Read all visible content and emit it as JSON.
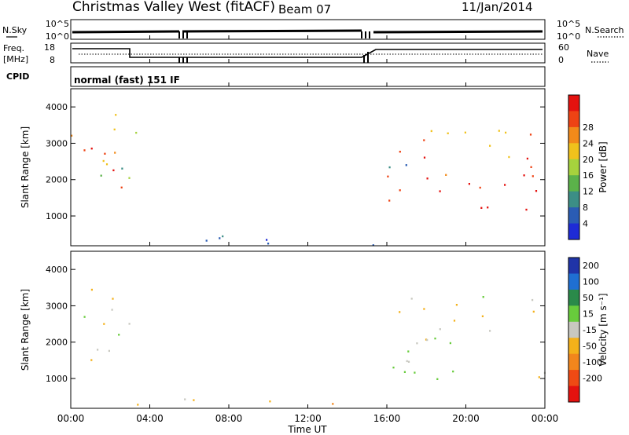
{
  "header": {
    "station": "Christmas Valley West (fitACF)",
    "beam": "Beam 07",
    "date": "11/Jan/2014"
  },
  "nsky_panel": {
    "left_label": "N.Sky",
    "right_label": "N.Search",
    "left_ticks": [
      "10^5",
      "10^0"
    ],
    "right_ticks": [
      "10^5",
      "10^0"
    ]
  },
  "freq_panel": {
    "left_label_1": "Freq.",
    "left_label_2": "[MHz]",
    "right_label": "Nave",
    "left_ticks": [
      "18",
      "8"
    ],
    "right_ticks": [
      "60",
      "0"
    ]
  },
  "cpid_panel": {
    "label": "CPID",
    "mode": "normal (fast) 151 IF"
  },
  "chart_data": [
    {
      "type": "heatmap",
      "name": "power",
      "ylabel": "Slant Range [km]",
      "ylim": [
        180,
        4500
      ],
      "yticks": [
        "1000",
        "2000",
        "3000",
        "4000"
      ],
      "colorbar_label": "Power [dB]",
      "colorbar_ticks": [
        "4",
        "8",
        "12",
        "16",
        "20",
        "24",
        "28"
      ],
      "colors": [
        "#1e2bd6",
        "#2a5cb4",
        "#3c8e86",
        "#5bb24a",
        "#a6d23d",
        "#f0c21c",
        "#f28a1a",
        "#ee4314",
        "#e4120f"
      ],
      "blobs": [
        {
          "t0": 0.0,
          "t1": 3.1,
          "r0": 1300,
          "r1": 3400,
          "level": 7
        },
        {
          "t0": 0.5,
          "t1": 3.5,
          "r0": 1800,
          "r1": 4000,
          "level": 4
        },
        {
          "t0": 2.5,
          "t1": 3.5,
          "r0": 2000,
          "r1": 3200,
          "level": 2
        },
        {
          "t0": 3.0,
          "t1": 16.5,
          "r0": 200,
          "r1": 600,
          "level": 1
        },
        {
          "t0": 16.0,
          "t1": 24.0,
          "r0": 1000,
          "r1": 2800,
          "level": 8
        },
        {
          "t0": 17.5,
          "t1": 24.0,
          "r0": 1800,
          "r1": 3500,
          "level": 6
        },
        {
          "t0": 15.8,
          "t1": 17.0,
          "r0": 1200,
          "r1": 2800,
          "level": 1
        }
      ]
    },
    {
      "type": "heatmap",
      "name": "velocity",
      "ylabel": "Slant Range [km]",
      "ylim": [
        180,
        4500
      ],
      "yticks": [
        "1000",
        "2000",
        "3000",
        "4000"
      ],
      "colorbar_label": "Velocity [m s⁻¹]",
      "colorbar_ticks": [
        "200",
        "100",
        "50",
        "15",
        "-15",
        "-50",
        "-100",
        "-200"
      ],
      "colors": [
        "#2034a8",
        "#1f6fd2",
        "#2a8a4a",
        "#68cc3c",
        "#c8c8c0",
        "#f4b11a",
        "#f2861c",
        "#ef4a14",
        "#e4120f"
      ],
      "blobs": [
        {
          "t0": 0.0,
          "t1": 3.3,
          "r0": 1300,
          "r1": 3500,
          "level": 4
        },
        {
          "t0": 0.2,
          "t1": 2.0,
          "r0": 1400,
          "r1": 2200,
          "level": 5
        },
        {
          "t0": 3.0,
          "t1": 16.5,
          "r0": 200,
          "r1": 550,
          "level": 5
        },
        {
          "t0": 16.0,
          "t1": 24.0,
          "r0": 1000,
          "r1": 3400,
          "level": 4
        },
        {
          "t0": 16.0,
          "t1": 19.0,
          "r0": 1200,
          "r1": 2600,
          "level": 3
        }
      ]
    }
  ],
  "x_axis": {
    "label": "Time UT",
    "ticks": [
      "00:00",
      "04:00",
      "08:00",
      "12:00",
      "16:00",
      "20:00",
      "00:00"
    ]
  }
}
